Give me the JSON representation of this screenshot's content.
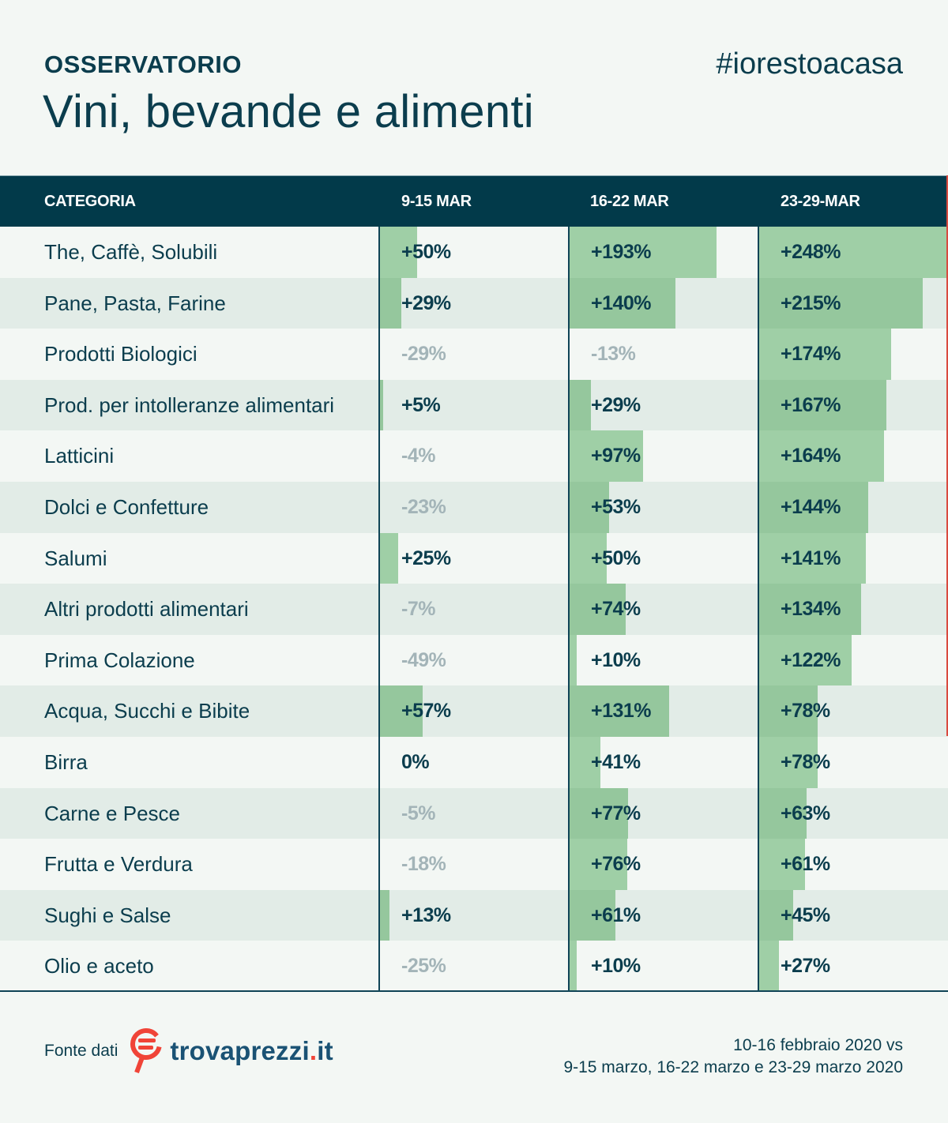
{
  "header": {
    "kicker": "OSSERVATORIO",
    "title": "Vini, bevande e alimenti",
    "hashtag": "#iorestoacasa"
  },
  "table": {
    "columns": [
      "CATEGORIA",
      "9-15 MAR",
      "16-22 MAR",
      "23-29-MAR"
    ],
    "rows": [
      {
        "category": "The, Caffè, Solubili",
        "values": [
          "+50%",
          "+193%",
          "+248%"
        ],
        "nums": [
          50,
          193,
          248
        ]
      },
      {
        "category": "Pane, Pasta, Farine",
        "values": [
          "+29%",
          "+140%",
          "+215%"
        ],
        "nums": [
          29,
          140,
          215
        ]
      },
      {
        "category": "Prodotti Biologici",
        "values": [
          "-29%",
          "-13%",
          "+174%"
        ],
        "nums": [
          -29,
          -13,
          174
        ]
      },
      {
        "category": "Prod. per intolleranze alimentari",
        "values": [
          "+5%",
          "+29%",
          "+167%"
        ],
        "nums": [
          5,
          29,
          167
        ]
      },
      {
        "category": "Latticini",
        "values": [
          "-4%",
          "+97%",
          "+164%"
        ],
        "nums": [
          -4,
          97,
          164
        ]
      },
      {
        "category": "Dolci e Confetture",
        "values": [
          "-23%",
          "+53%",
          "+144%"
        ],
        "nums": [
          -23,
          53,
          144
        ]
      },
      {
        "category": "Salumi",
        "values": [
          "+25%",
          "+50%",
          "+141%"
        ],
        "nums": [
          25,
          50,
          141
        ]
      },
      {
        "category": "Altri prodotti alimentari",
        "values": [
          "-7%",
          "+74%",
          "+134%"
        ],
        "nums": [
          -7,
          74,
          134
        ]
      },
      {
        "category": "Prima Colazione",
        "values": [
          "-49%",
          "+10%",
          "+122%"
        ],
        "nums": [
          -49,
          10,
          122
        ]
      },
      {
        "category": "Acqua, Succhi e Bibite",
        "values": [
          "+57%",
          "+131%",
          "+78%"
        ],
        "nums": [
          57,
          131,
          78
        ]
      },
      {
        "category": "Birra",
        "values": [
          "0%",
          "+41%",
          "+78%"
        ],
        "nums": [
          0,
          41,
          78
        ]
      },
      {
        "category": "Carne e Pesce",
        "values": [
          "-5%",
          "+77%",
          "+63%"
        ],
        "nums": [
          -5,
          77,
          63
        ]
      },
      {
        "category": "Frutta e Verdura",
        "values": [
          "-18%",
          "+76%",
          "+61%"
        ],
        "nums": [
          -18,
          76,
          61
        ]
      },
      {
        "category": "Sughi e Salse",
        "values": [
          "+13%",
          "+61%",
          "+45%"
        ],
        "nums": [
          13,
          61,
          45
        ]
      },
      {
        "category": "Olio e aceto",
        "values": [
          "-25%",
          "+10%",
          "+27%"
        ],
        "nums": [
          -25,
          10,
          27
        ]
      }
    ]
  },
  "footer": {
    "source_label": "Fonte dati",
    "logo_name": "trovaprezzi",
    "logo_dot": ".",
    "logo_tld": "it",
    "logo_icon": "magnifier-e-icon",
    "period_line1": "10-16 febbraio 2020 vs",
    "period_line2": "9-15 marzo, 16-22 marzo e 23-29 marzo 2020"
  },
  "colors": {
    "header_bg": "#023a4a",
    "text": "#0b3d4d",
    "bar": "#9fcfa6",
    "bar_alt": "#95c79d",
    "row_alt": "#e2ece7",
    "background": "#f3f7f4",
    "negative_text": "#a3b4b8",
    "logo_red": "#f04438",
    "logo_blue": "#1a5274"
  },
  "chart_data": {
    "type": "table",
    "title": "Vini, bevande e alimenti",
    "subtitle": "OSSERVATORIO #iorestoacasa",
    "categories": [
      "The, Caffè, Solubili",
      "Pane, Pasta, Farine",
      "Prodotti Biologici",
      "Prod. per intolleranze alimentari",
      "Latticini",
      "Dolci e Confetture",
      "Salumi",
      "Altri prodotti alimentari",
      "Prima Colazione",
      "Acqua, Succhi e Bibite",
      "Birra",
      "Carne e Pesce",
      "Frutta e Verdura",
      "Sughi e Salse",
      "Olio e aceto"
    ],
    "series": [
      {
        "name": "9-15 MAR",
        "values": [
          50,
          29,
          -29,
          5,
          -4,
          -23,
          25,
          -7,
          -49,
          57,
          0,
          -5,
          -18,
          13,
          -25
        ]
      },
      {
        "name": "16-22 MAR",
        "values": [
          193,
          140,
          -13,
          29,
          97,
          53,
          50,
          74,
          10,
          131,
          41,
          77,
          76,
          61,
          10
        ]
      },
      {
        "name": "23-29-MAR",
        "values": [
          248,
          215,
          174,
          167,
          164,
          144,
          141,
          134,
          122,
          78,
          78,
          63,
          61,
          45,
          27
        ]
      }
    ],
    "unit": "% change vs 10-16 febbraio 2020",
    "note": "Positive values shown with in-cell green bars; negative values in grey text without bars",
    "source": "trovaprezzi.it"
  }
}
